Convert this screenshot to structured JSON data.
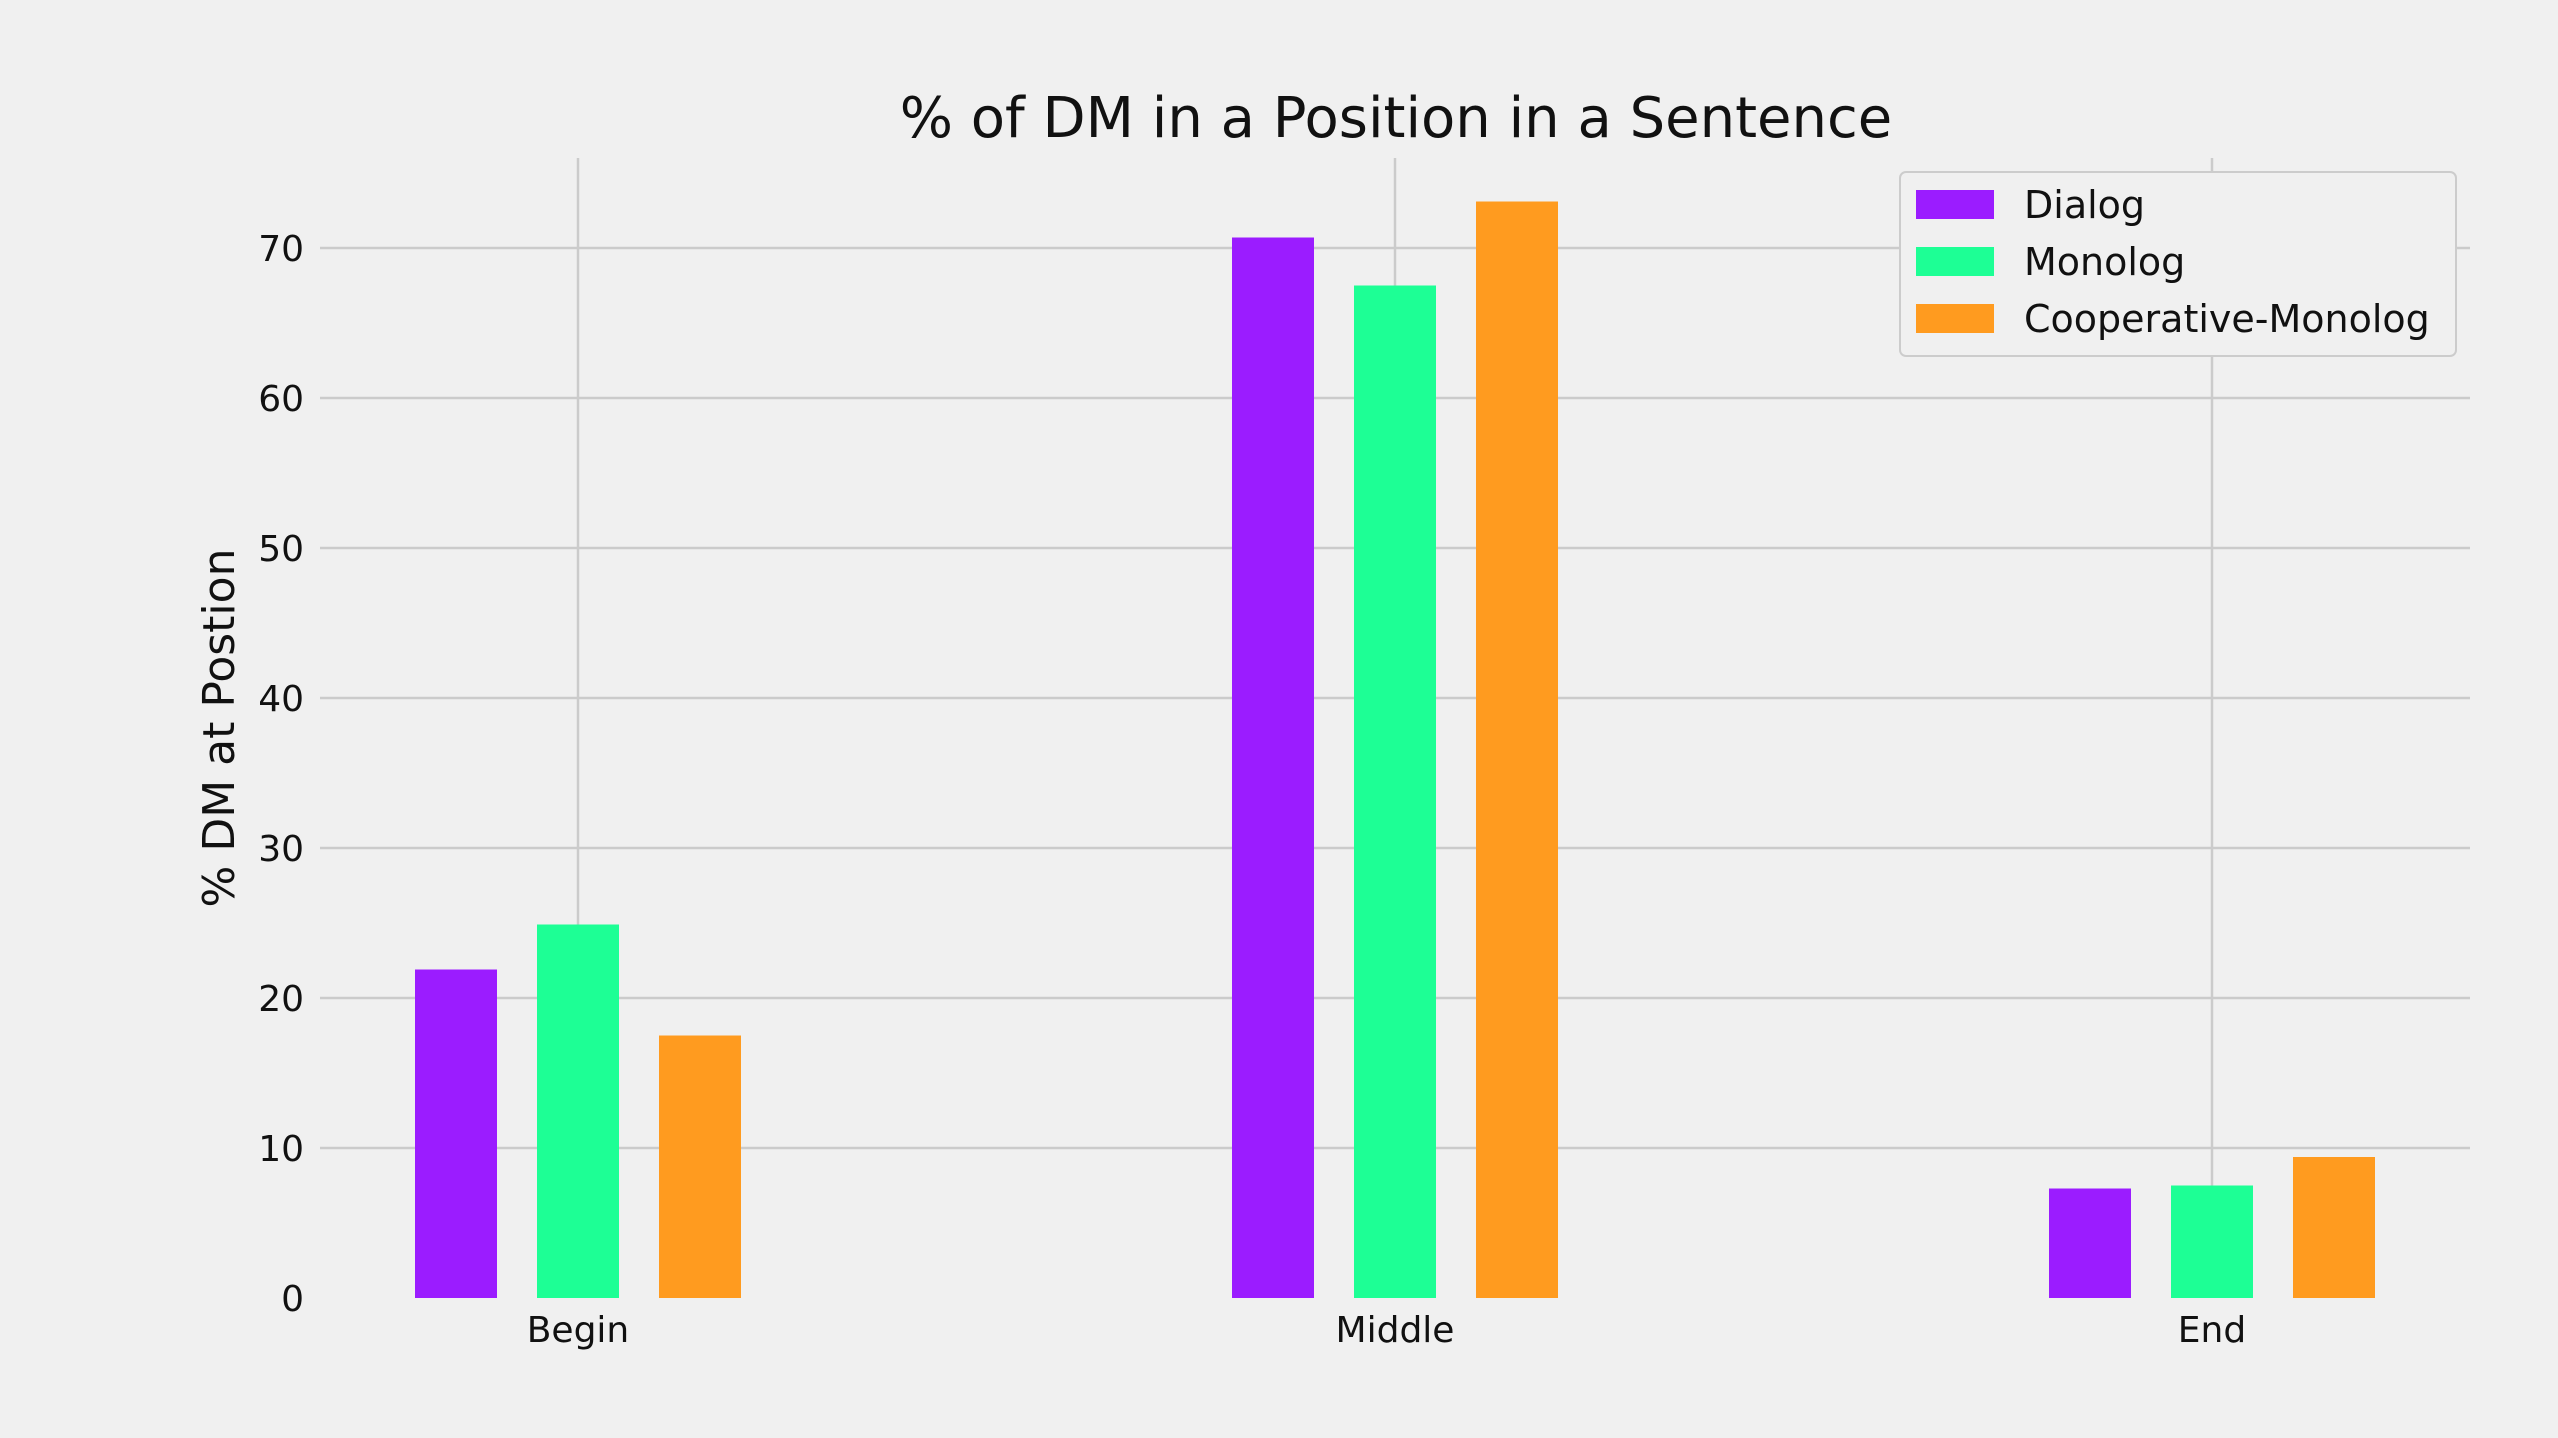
{
  "chart_data": {
    "type": "bar",
    "title": "% of DM in a Position in a Sentence",
    "xlabel": "",
    "ylabel": "% DM at Postion",
    "categories": [
      "Begin",
      "Middle",
      "End"
    ],
    "series": [
      {
        "name": "Dialog",
        "values": [
          21.9,
          70.7,
          7.3
        ],
        "color": "#9b1cff"
      },
      {
        "name": "Monolog",
        "values": [
          24.9,
          67.5,
          7.5
        ],
        "color": "#1dff95"
      },
      {
        "name": "Cooperative-Monolog",
        "values": [
          17.5,
          73.1,
          9.4
        ],
        "color": "#ff9b1f"
      }
    ],
    "ylim": [
      0,
      76
    ],
    "yticks": [
      0,
      10,
      20,
      30,
      40,
      50,
      60,
      70
    ],
    "grid": true,
    "legend_position": "top-right"
  }
}
